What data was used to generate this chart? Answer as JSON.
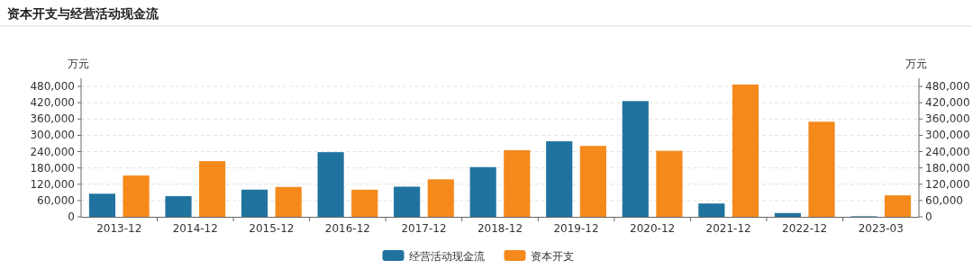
{
  "chart_data": {
    "type": "bar",
    "title": "资本开支与经营活动现金流",
    "ylabel": "万元",
    "y2label": "万元",
    "categories": [
      "2013-12",
      "2014-12",
      "2015-12",
      "2016-12",
      "2017-12",
      "2018-12",
      "2019-12",
      "2020-12",
      "2021-12",
      "2022-12",
      "2023-03"
    ],
    "series": [
      {
        "name": "经营活动现金流",
        "color": "#21739f",
        "values": [
          85000,
          76000,
          100000,
          238000,
          111000,
          183000,
          278000,
          426000,
          49000,
          14000,
          2000
        ]
      },
      {
        "name": "资本开支",
        "color": "#f5891c",
        "values": [
          152000,
          205000,
          110000,
          100000,
          138000,
          245000,
          261000,
          243000,
          487000,
          350000,
          79000
        ]
      }
    ],
    "ylim": [
      0,
      510000
    ],
    "yticks": [
      {
        "value": 0,
        "label": "0"
      },
      {
        "value": 60000,
        "label": "60,000"
      },
      {
        "value": 120000,
        "label": "120,000"
      },
      {
        "value": 180000,
        "label": "180,000"
      },
      {
        "value": 240000,
        "label": "240,000"
      },
      {
        "value": 300000,
        "label": "300,000"
      },
      {
        "value": 360000,
        "label": "360,000"
      },
      {
        "value": 420000,
        "label": "420,000"
      },
      {
        "value": 480000,
        "label": "480,000"
      }
    ],
    "y2lim": [
      0,
      510000
    ],
    "y2ticks": [
      {
        "value": 0,
        "label": "0"
      },
      {
        "value": 60000,
        "label": "60,000"
      },
      {
        "value": 120000,
        "label": "120,000"
      },
      {
        "value": 180000,
        "label": "180,000"
      },
      {
        "value": 240000,
        "label": "240,000"
      },
      {
        "value": 300000,
        "label": "300,000"
      },
      {
        "value": 360000,
        "label": "360,000"
      },
      {
        "value": 420000,
        "label": "420,000"
      },
      {
        "value": 480000,
        "label": "480,000"
      }
    ],
    "grid": "y",
    "legend": "bottom"
  }
}
